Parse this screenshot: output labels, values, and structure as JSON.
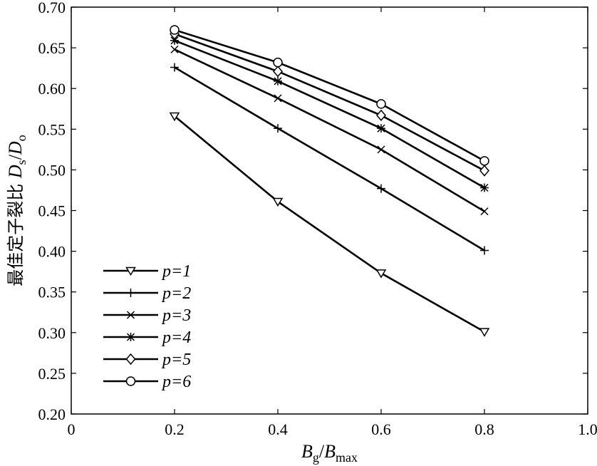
{
  "chart_data": {
    "type": "line",
    "xlabel": {
      "base": "B",
      "base_sub": "g",
      "divider": "/",
      "den": "B",
      "den_sub": "max"
    },
    "ylabel": {
      "prefix": "最佳定子裂比 ",
      "base": "D",
      "base_sub": "s",
      "divider": "/",
      "den": "D",
      "den_sub": "o"
    },
    "xlim": [
      0,
      1.0
    ],
    "ylim": [
      0.2,
      0.7
    ],
    "xticks": [
      0,
      0.2,
      0.4,
      0.6,
      0.8,
      1.0
    ],
    "xtick_labels": [
      "0",
      "0.2",
      "0.4",
      "0.6",
      "0.8",
      "1.0"
    ],
    "yticks": [
      0.2,
      0.25,
      0.3,
      0.35,
      0.4,
      0.45,
      0.5,
      0.55,
      0.6,
      0.65,
      0.7
    ],
    "ytick_labels": [
      "0.20",
      "0.25",
      "0.30",
      "0.35",
      "0.40",
      "0.45",
      "0.50",
      "0.55",
      "0.60",
      "0.65",
      "0.70"
    ],
    "grid": false,
    "legend_position": "bottom-left",
    "x": [
      0.2,
      0.4,
      0.6,
      0.8
    ],
    "series": [
      {
        "name": "p=1",
        "marker": "triangle-down",
        "values": [
          0.566,
          0.461,
          0.373,
          0.301
        ]
      },
      {
        "name": "p=2",
        "marker": "plus",
        "values": [
          0.626,
          0.551,
          0.477,
          0.401
        ]
      },
      {
        "name": "p=3",
        "marker": "x",
        "values": [
          0.648,
          0.588,
          0.525,
          0.449
        ]
      },
      {
        "name": "p=4",
        "marker": "asterisk",
        "values": [
          0.659,
          0.609,
          0.551,
          0.478
        ]
      },
      {
        "name": "p=5",
        "marker": "diamond",
        "values": [
          0.667,
          0.621,
          0.567,
          0.499
        ]
      },
      {
        "name": "p=6",
        "marker": "circle",
        "values": [
          0.672,
          0.632,
          0.581,
          0.511
        ]
      }
    ],
    "colors": {
      "line": "#000000",
      "background": "#ffffff"
    }
  }
}
